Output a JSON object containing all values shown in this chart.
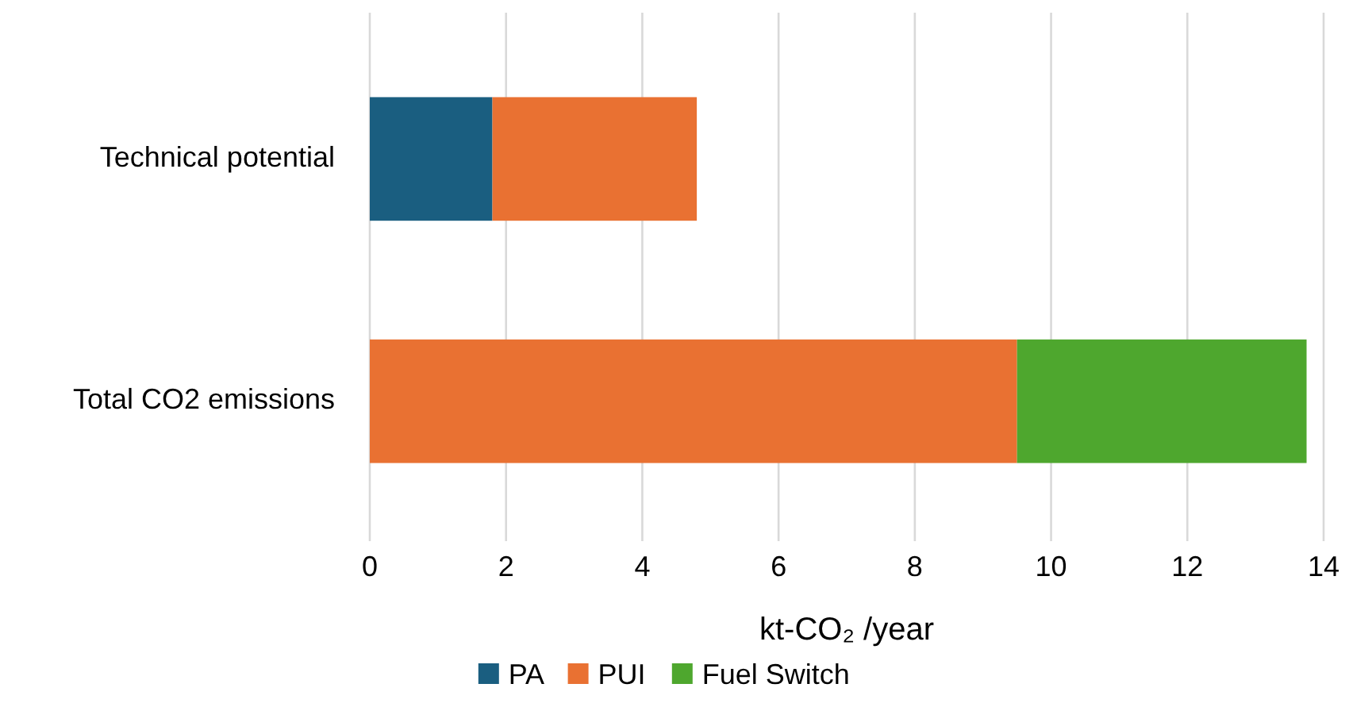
{
  "chart_data": {
    "type": "bar",
    "orientation": "horizontal",
    "stacked": true,
    "xlabel": "kt-CO₂ /year",
    "categories": [
      "Technical potential",
      "Total CO2 emissions"
    ],
    "series": [
      {
        "name": "PA",
        "color": "#1a5e80",
        "values": [
          1.8,
          0
        ]
      },
      {
        "name": "PUI",
        "color": "#e97132",
        "values": [
          3.0,
          9.5
        ]
      },
      {
        "name": "Fuel Switch",
        "color": "#4ea72e",
        "values": [
          0,
          4.25
        ]
      }
    ],
    "xlim": [
      0,
      14
    ],
    "xticks": [
      0,
      2,
      4,
      6,
      8,
      10,
      12,
      14
    ],
    "grid": "x",
    "legend": "bottom"
  }
}
